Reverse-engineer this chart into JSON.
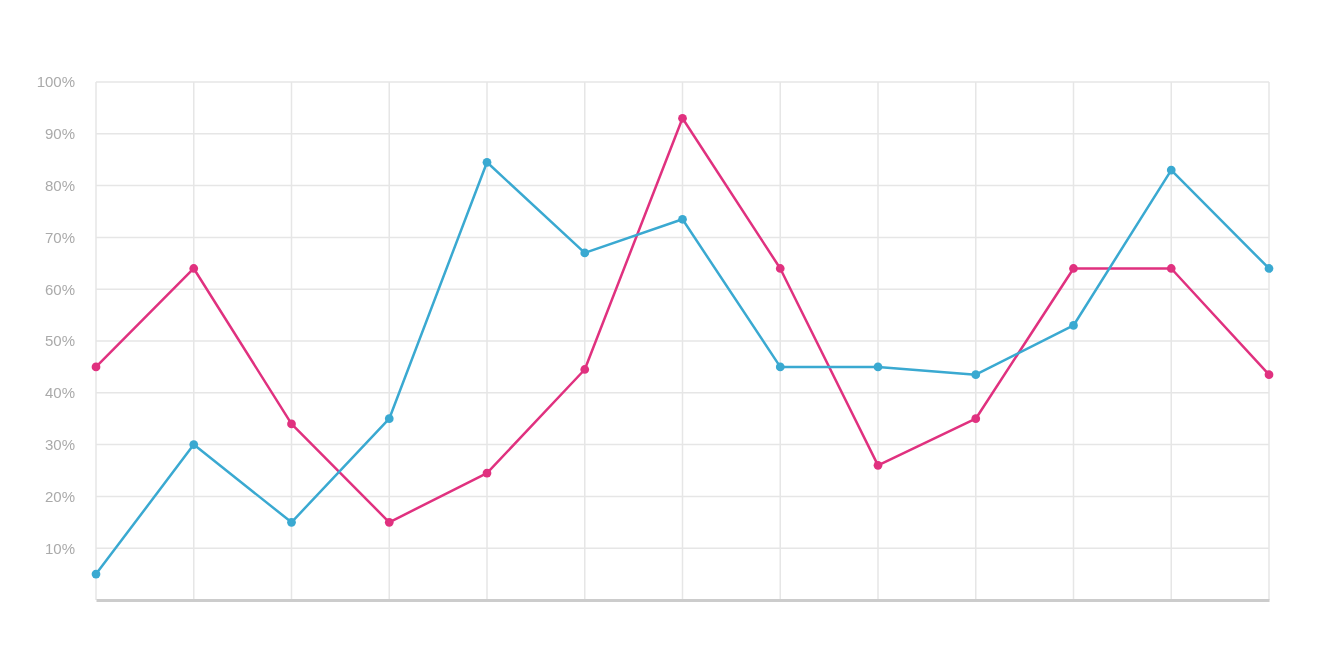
{
  "chart_data": {
    "type": "line",
    "categories": [
      null,
      null,
      null,
      null,
      null,
      null,
      null,
      null,
      null,
      null,
      null,
      null,
      null
    ],
    "series": [
      {
        "color": "#e0317f",
        "values": [
          45,
          64,
          34,
          15,
          24.5,
          44.5,
          93,
          64,
          26,
          35,
          64,
          64,
          43.5
        ]
      },
      {
        "color": "#3aa9d1",
        "values": [
          5,
          30,
          15,
          35,
          84.5,
          67,
          73.5,
          45,
          45,
          43.5,
          53,
          83,
          64
        ]
      }
    ],
    "ylim": [
      0,
      100
    ],
    "yticks": [
      {
        "value": 10,
        "label": "10%"
      },
      {
        "value": 20,
        "label": "20%"
      },
      {
        "value": 30,
        "label": "30%"
      },
      {
        "value": 40,
        "label": "40%"
      },
      {
        "value": 50,
        "label": "50%"
      },
      {
        "value": 60,
        "label": "60%"
      },
      {
        "value": 70,
        "label": "70%"
      },
      {
        "value": 80,
        "label": "80%"
      },
      {
        "value": 90,
        "label": "90%"
      },
      {
        "value": 100,
        "label": "100%"
      }
    ],
    "grid": true,
    "legend": false,
    "marker": "circle",
    "line_style": "solid"
  }
}
